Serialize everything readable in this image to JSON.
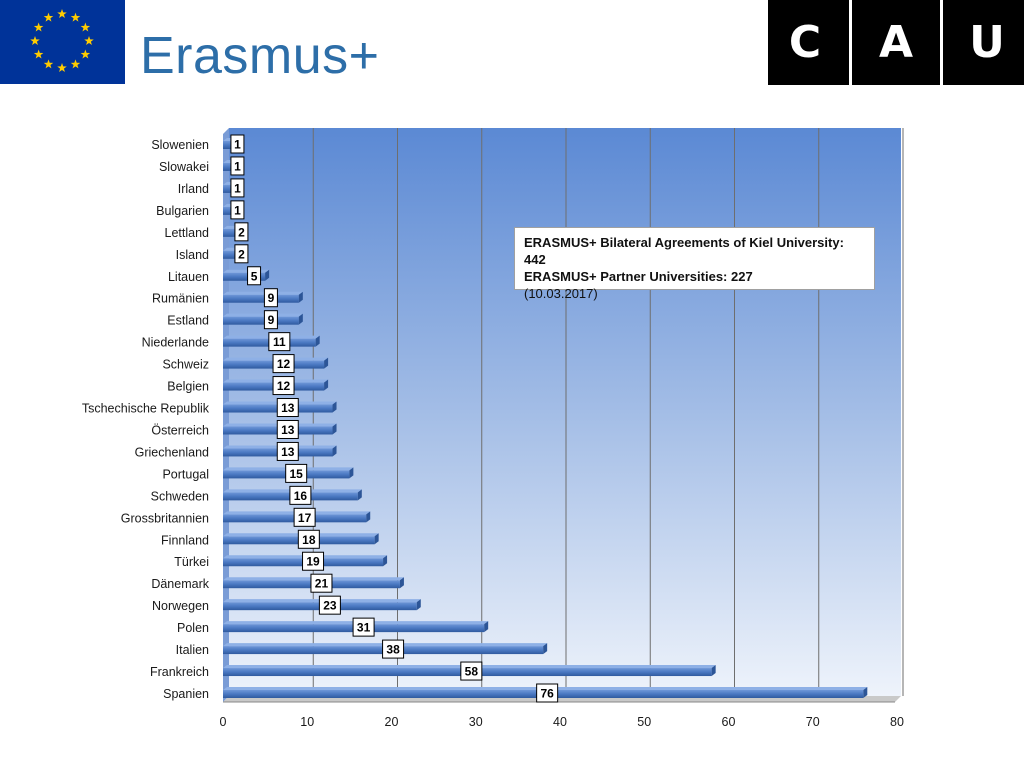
{
  "header": {
    "brand_text": "Erasmus+",
    "cau_letters": [
      "C",
      "A",
      "U"
    ],
    "eu_flag_color": "#003399",
    "eu_star_color": "#ffcc00",
    "brand_color": "#2d6ea8"
  },
  "info_box": {
    "line1": "ERASMUS+ Bilateral  Agreements of Kiel University: 442",
    "line2": "ERASMUS+ Partner Universities: 227",
    "line3": "(10.03.2017)"
  },
  "chart_data": {
    "type": "bar",
    "orientation": "horizontal",
    "categories": [
      "Slowenien",
      "Slowakei",
      "Irland",
      "Bulgarien",
      "Lettland",
      "Island",
      "Litauen",
      "Rumänien",
      "Estland",
      "Niederlande",
      "Schweiz",
      "Belgien",
      "Tschechische Republik",
      "Österreich",
      "Griechenland",
      "Portugal",
      "Schweden",
      "Grossbritannien",
      "Finnland",
      "Türkei",
      "Dänemark",
      "Norwegen",
      "Polen",
      "Italien",
      "Frankreich",
      "Spanien"
    ],
    "values": [
      1,
      1,
      1,
      1,
      2,
      2,
      5,
      9,
      9,
      11,
      12,
      12,
      13,
      13,
      13,
      15,
      16,
      17,
      18,
      19,
      21,
      23,
      31,
      38,
      58,
      76
    ],
    "xlim": [
      0,
      80
    ],
    "xticks": [
      0,
      10,
      20,
      30,
      40,
      50,
      60,
      70,
      80
    ],
    "grid": true,
    "data_labels": true,
    "bar_color": "#4a78c2",
    "plot_background": [
      "#5d8bd6",
      "#eef3fb"
    ]
  }
}
